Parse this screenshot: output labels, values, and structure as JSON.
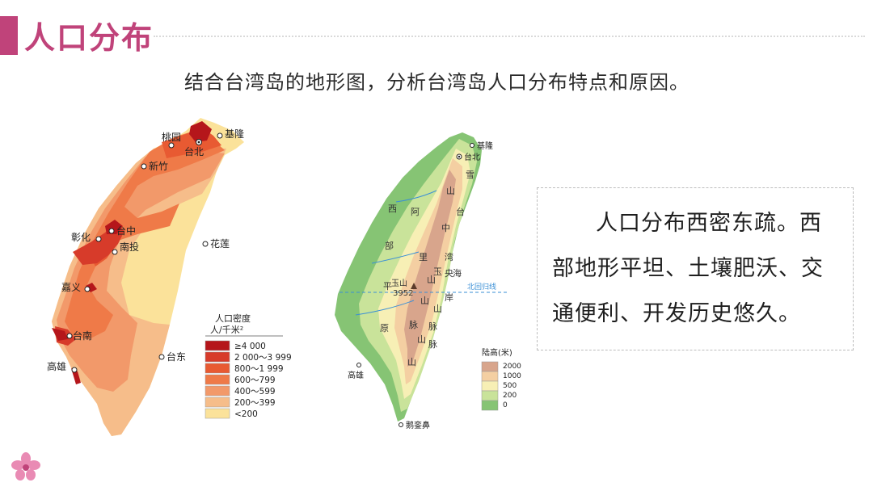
{
  "header": {
    "title": "人口分布"
  },
  "question": "结合台湾岛的地形图，分析台湾岛人口分布特点和原因。",
  "population_map": {
    "cities": {
      "taibei": "台北",
      "jilong": "基隆",
      "taoyuan": "桃园",
      "xinzhu": "新竹",
      "taizhong": "台中",
      "zhanghua": "彰化",
      "nantou": "南投",
      "hualian": "花莲",
      "jiayi": "嘉义",
      "tainan": "台南",
      "gaoxiong": "高雄",
      "taidong": "台东"
    },
    "legend": {
      "title": "人口密度",
      "unit": "人/千米²",
      "items": [
        {
          "label": "≥4 000",
          "color": "#b5161b"
        },
        {
          "label": "2 000～3 999",
          "color": "#d73b2a"
        },
        {
          "label": "800～1 999",
          "color": "#e85a32"
        },
        {
          "label": "600～799",
          "color": "#ef7a48"
        },
        {
          "label": "400～599",
          "color": "#f2996a"
        },
        {
          "label": "200～399",
          "color": "#f6bd8a"
        },
        {
          "label": "<200",
          "color": "#fbe29a"
        }
      ]
    }
  },
  "terrain_map": {
    "labels": {
      "jilong": "基隆",
      "taibei": "台北",
      "gaoxiong": "高雄",
      "eluanbi": "鹅銮鼻",
      "beihuiguixian": "北回归线",
      "yushan": "玉山",
      "yushan_height": "3952"
    },
    "regions": [
      "西",
      "部",
      "平",
      "原",
      "阿",
      "里",
      "山",
      "台",
      "中",
      "湾",
      "玉",
      "央",
      "海",
      "岸",
      "山",
      "脉",
      "雪",
      "山",
      "山",
      "脉",
      "山",
      "脉",
      "山"
    ],
    "legend": {
      "title": "陆高(米)",
      "items": [
        {
          "label": "2000",
          "color": "#d8a58c"
        },
        {
          "label": "1000",
          "color": "#f4cfa2"
        },
        {
          "label": "500",
          "color": "#f7efb5"
        },
        {
          "label": "200",
          "color": "#c9e39a"
        },
        {
          "label": "0",
          "color": "#86c474"
        }
      ]
    }
  },
  "answer": "人口分布西密东疏。西部地形平坦、土壤肥沃、交通便利、开发历史悠久。",
  "colors": {
    "accent": "#c0437a"
  }
}
